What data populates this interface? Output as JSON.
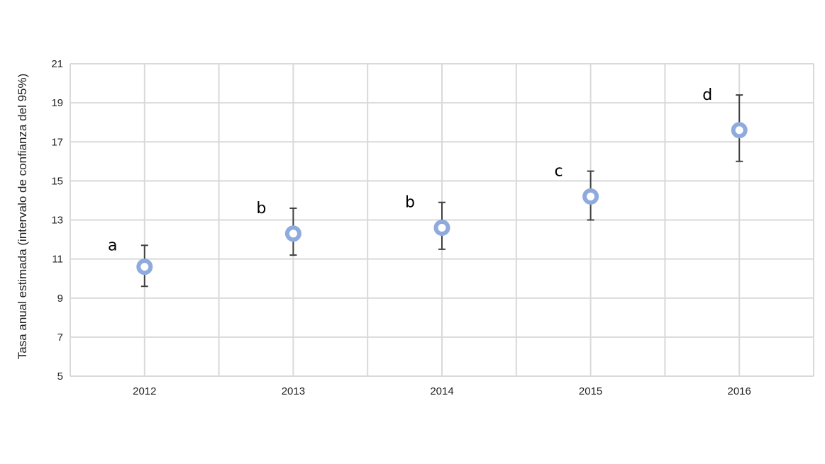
{
  "chart_data": {
    "type": "scatter",
    "ylabel": "Tasa anual estimada (intervalo de confianza del 95%)",
    "xlabel": "",
    "categories": [
      "2012",
      "2013",
      "2014",
      "2015",
      "2016"
    ],
    "ylim": [
      5,
      21
    ],
    "yticks": [
      "5",
      "7",
      "9",
      "11",
      "13",
      "15",
      "17",
      "19",
      "21"
    ],
    "grid": true,
    "points": [
      {
        "x": "2012",
        "y": 10.6,
        "lower": 9.6,
        "upper": 11.7,
        "group": "a"
      },
      {
        "x": "2013",
        "y": 12.3,
        "lower": 11.2,
        "upper": 13.6,
        "group": "b"
      },
      {
        "x": "2014",
        "y": 12.6,
        "lower": 11.5,
        "upper": 13.9,
        "group": "b"
      },
      {
        "x": "2015",
        "y": 14.2,
        "lower": 13.0,
        "upper": 15.5,
        "group": "c"
      },
      {
        "x": "2016",
        "y": 17.6,
        "lower": 16.0,
        "upper": 19.4,
        "group": "d"
      }
    ],
    "colors": {
      "marker": "#8faadc",
      "error_bar": "#404040",
      "grid": "#d9d9d9"
    }
  }
}
